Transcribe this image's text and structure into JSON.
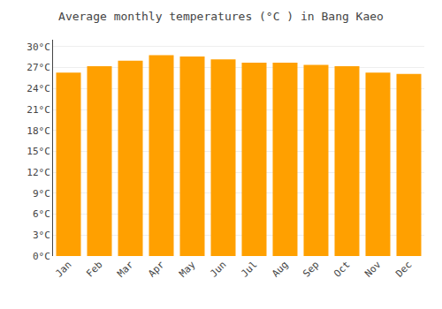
{
  "chart_data": {
    "type": "bar",
    "title": "Average monthly temperatures (°C ) in Bang Kaeo",
    "categories": [
      "Jan",
      "Feb",
      "Mar",
      "Apr",
      "May",
      "Jun",
      "Jul",
      "Aug",
      "Sep",
      "Oct",
      "Nov",
      "Dec"
    ],
    "values": [
      26.3,
      27.2,
      28.0,
      28.8,
      28.6,
      28.2,
      27.7,
      27.7,
      27.4,
      27.2,
      26.3,
      26.1
    ],
    "color": "#FFA000",
    "ylim": [
      0,
      31
    ],
    "yticks": [
      {
        "value": 0,
        "label": "0°C"
      },
      {
        "value": 3,
        "label": "3°C"
      },
      {
        "value": 6,
        "label": "6°C"
      },
      {
        "value": 9,
        "label": "9°C"
      },
      {
        "value": 12,
        "label": "12°C"
      },
      {
        "value": 15,
        "label": "15°C"
      },
      {
        "value": 18,
        "label": "18°C"
      },
      {
        "value": 21,
        "label": "21°C"
      },
      {
        "value": 24,
        "label": "24°C"
      },
      {
        "value": 27,
        "label": "27°C"
      },
      {
        "value": 30,
        "label": "30°C"
      }
    ],
    "grid": true
  }
}
